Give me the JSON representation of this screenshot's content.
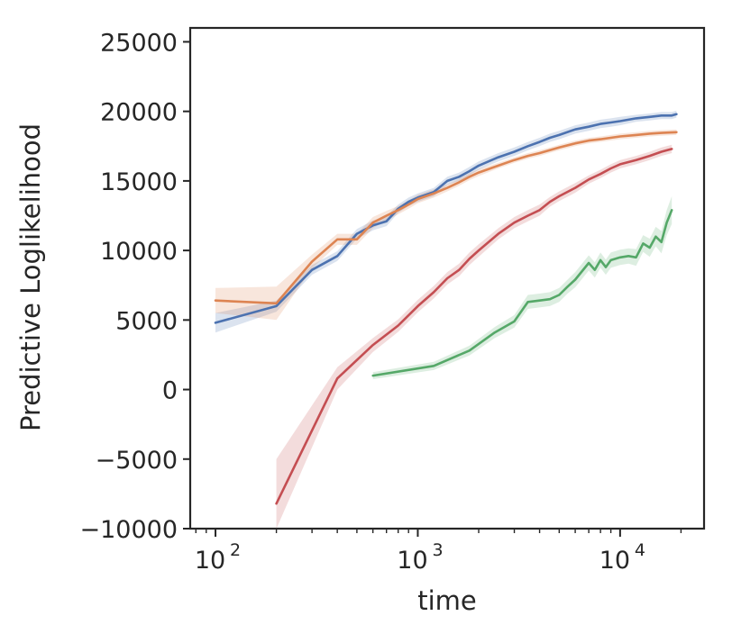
{
  "chart_data": {
    "type": "line",
    "title": "",
    "xlabel": "time",
    "ylabel": "Predictive Loglikelihood",
    "xscale": "log",
    "xlim": [
      75,
      26000
    ],
    "ylim": [
      -10000,
      26000
    ],
    "grid": false,
    "legend": "none",
    "x_ticks": [
      {
        "value": 100,
        "base": "10",
        "exp": "2"
      },
      {
        "value": 1000,
        "base": "10",
        "exp": "3"
      },
      {
        "value": 10000,
        "base": "10",
        "exp": "4"
      }
    ],
    "y_ticks": [
      {
        "value": -10000,
        "label": "−10000"
      },
      {
        "value": -5000,
        "label": "−5000"
      },
      {
        "value": 0,
        "label": "0"
      },
      {
        "value": 5000,
        "label": "5000"
      },
      {
        "value": 10000,
        "label": "10000"
      },
      {
        "value": 15000,
        "label": "15000"
      },
      {
        "value": 20000,
        "label": "20000"
      },
      {
        "value": 25000,
        "label": "25000"
      }
    ],
    "series": [
      {
        "color": "#4c72b0",
        "x": [
          100,
          200,
          300,
          400,
          500,
          600,
          700,
          800,
          900,
          1000,
          1200,
          1400,
          1600,
          1800,
          2000,
          2500,
          3000,
          3500,
          4000,
          4500,
          5000,
          6000,
          7000,
          8000,
          9000,
          10000,
          12000,
          14000,
          16000,
          18000,
          19000
        ],
        "y": [
          4800,
          6000,
          8600,
          9600,
          11200,
          11800,
          12100,
          13000,
          13500,
          13800,
          14200,
          15000,
          15300,
          15700,
          16100,
          16700,
          17100,
          17500,
          17800,
          18100,
          18300,
          18700,
          18900,
          19100,
          19200,
          19300,
          19500,
          19600,
          19700,
          19700,
          19800
        ],
        "band": [
          700,
          400,
          350,
          350,
          350,
          350,
          350,
          300,
          300,
          300,
          300,
          300,
          300,
          300,
          300,
          300,
          300,
          300,
          300,
          300,
          300,
          300,
          300,
          300,
          300,
          300,
          250,
          250,
          250,
          250,
          250
        ]
      },
      {
        "color": "#dd8452",
        "x": [
          100,
          200,
          300,
          400,
          500,
          600,
          700,
          800,
          900,
          1000,
          1200,
          1400,
          1600,
          1800,
          2000,
          2500,
          3000,
          3500,
          4000,
          5000,
          6000,
          7000,
          8000,
          10000,
          12000,
          14000,
          16000,
          19000
        ],
        "y": [
          6400,
          6200,
          9200,
          10800,
          10800,
          12000,
          12500,
          12900,
          13300,
          13700,
          14100,
          14500,
          14900,
          15300,
          15600,
          16100,
          16500,
          16800,
          17000,
          17400,
          17700,
          17900,
          18000,
          18200,
          18300,
          18400,
          18450,
          18500
        ],
        "band": [
          900,
          1200,
          500,
          400,
          400,
          400,
          350,
          300,
          300,
          300,
          300,
          250,
          250,
          250,
          250,
          200,
          200,
          200,
          200,
          200,
          200,
          200,
          200,
          200,
          200,
          200,
          200,
          200
        ]
      },
      {
        "color": "#c44e52",
        "x": [
          200,
          400,
          600,
          800,
          1000,
          1200,
          1400,
          1600,
          1800,
          2000,
          2500,
          3000,
          3500,
          4000,
          4500,
          5000,
          6000,
          7000,
          8000,
          9000,
          10000,
          12000,
          14000,
          16000,
          18000
        ],
        "y": [
          -8200,
          800,
          3200,
          4600,
          6000,
          7000,
          8000,
          8600,
          9400,
          10000,
          11200,
          12000,
          12500,
          12900,
          13500,
          13900,
          14500,
          15100,
          15500,
          15900,
          16200,
          16500,
          16800,
          17100,
          17300
        ],
        "band": [
          3200,
          800,
          500,
          450,
          450,
          450,
          450,
          450,
          450,
          450,
          400,
          400,
          400,
          400,
          350,
          350,
          350,
          300,
          300,
          300,
          300,
          300,
          300,
          300,
          300
        ]
      },
      {
        "color": "#55a868",
        "x": [
          600,
          1200,
          1800,
          2400,
          3000,
          3500,
          4000,
          4500,
          5000,
          5500,
          6000,
          7000,
          7500,
          8000,
          8500,
          9000,
          10000,
          11000,
          12000,
          13000,
          14000,
          15000,
          16000,
          17000,
          18000
        ],
        "y": [
          1000,
          1700,
          2800,
          4100,
          4900,
          6300,
          6400,
          6500,
          6800,
          7400,
          7900,
          9100,
          8600,
          9300,
          8800,
          9300,
          9500,
          9600,
          9500,
          10500,
          10200,
          11000,
          10600,
          12000,
          12900
        ],
        "band": [
          250,
          300,
          350,
          400,
          450,
          500,
          500,
          500,
          500,
          500,
          550,
          550,
          550,
          550,
          550,
          550,
          550,
          550,
          600,
          600,
          650,
          700,
          800,
          900,
          1000
        ]
      }
    ]
  }
}
